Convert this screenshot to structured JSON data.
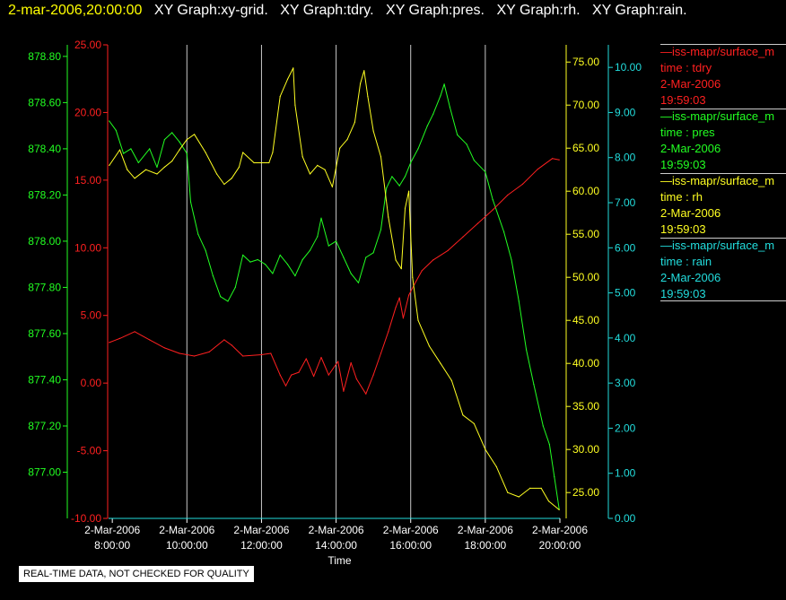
{
  "header": {
    "timestamp": "2-mar-2006,20:00:00",
    "titles": [
      "XY Graph:xy-grid.",
      "XY Graph:tdry.",
      "XY Graph:pres.",
      "XY Graph:rh.",
      "XY Graph:rain."
    ]
  },
  "colors": {
    "tdry": "#ff2020",
    "pres": "#22ff22",
    "rh": "#ffff22",
    "rain": "#22dddd",
    "timestamp": "#ffff00",
    "grid": "#c8c8c8"
  },
  "legend": [
    {
      "name": "—iss-mapr/surface_m",
      "label": "time : tdry",
      "date": "2-Mar-2006",
      "time": "19:59:03",
      "color": "#ff2020"
    },
    {
      "name": "—iss-mapr/surface_m",
      "label": "time : pres",
      "date": "2-Mar-2006",
      "time": "19:59:03",
      "color": "#22ff22"
    },
    {
      "name": "—iss-mapr/surface_m",
      "label": "time : rh",
      "date": "2-Mar-2006",
      "time": "19:59:03",
      "color": "#ffff22"
    },
    {
      "name": "—iss-mapr/surface_m",
      "label": "time : rain",
      "date": "2-Mar-2006",
      "time": "19:59:03",
      "color": "#22dddd"
    }
  ],
  "disclaimer": "REAL-TIME DATA, NOT CHECKED FOR QUALITY",
  "chart_data": {
    "type": "line",
    "xlabel": "Time",
    "x_ticks": [
      {
        "date": "2-Mar-2006",
        "time": "8:00:00",
        "h": 8
      },
      {
        "date": "2-Mar-2006",
        "time": "10:00:00",
        "h": 10
      },
      {
        "date": "2-Mar-2006",
        "time": "12:00:00",
        "h": 12
      },
      {
        "date": "2-Mar-2006",
        "time": "14:00:00",
        "h": 14
      },
      {
        "date": "2-Mar-2006",
        "time": "16:00:00",
        "h": 16
      },
      {
        "date": "2-Mar-2006",
        "time": "18:00:00",
        "h": 18
      },
      {
        "date": "2-Mar-2006",
        "time": "20:00:00",
        "h": 20
      }
    ],
    "xlim_hours": [
      7.9,
      20.0
    ],
    "grid": "vertical",
    "axes": [
      {
        "id": "pres",
        "ylim": [
          876.8,
          878.85
        ],
        "ticks": [
          "877.00",
          "877.20",
          "877.40",
          "877.60",
          "877.80",
          "878.00",
          "878.20",
          "878.40",
          "878.60",
          "878.80"
        ],
        "color": "#22ff22"
      },
      {
        "id": "tdry",
        "ylim": [
          -10,
          25
        ],
        "ticks": [
          "-10.00",
          "-5.00",
          "0.00",
          "5.00",
          "10.00",
          "15.00",
          "20.00",
          "25.00"
        ],
        "color": "#ff2020"
      },
      {
        "id": "rh",
        "ylim": [
          22,
          77
        ],
        "ticks": [
          "25.00",
          "30.00",
          "35.00",
          "40.00",
          "45.00",
          "50.00",
          "55.00",
          "60.00",
          "65.00",
          "70.00",
          "75.00"
        ],
        "color": "#ffff22"
      },
      {
        "id": "rain",
        "ylim": [
          0,
          10.5
        ],
        "ticks": [
          "0.00",
          "1.00",
          "2.00",
          "3.00",
          "4.00",
          "5.00",
          "6.00",
          "7.00",
          "8.00",
          "9.00",
          "10.00"
        ],
        "color": "#22dddd"
      }
    ],
    "series": [
      {
        "id": "tdry",
        "axis": "tdry",
        "points": [
          [
            7.92,
            3.0
          ],
          [
            8.2,
            3.3
          ],
          [
            8.6,
            3.8
          ],
          [
            9.0,
            3.2
          ],
          [
            9.4,
            2.6
          ],
          [
            9.8,
            2.2
          ],
          [
            10.2,
            2.0
          ],
          [
            10.6,
            2.3
          ],
          [
            11.0,
            3.2
          ],
          [
            11.2,
            2.8
          ],
          [
            11.5,
            2.0
          ],
          [
            12.0,
            2.1
          ],
          [
            12.25,
            2.2
          ],
          [
            12.5,
            0.6
          ],
          [
            12.65,
            -0.2
          ],
          [
            12.8,
            0.6
          ],
          [
            13.0,
            0.8
          ],
          [
            13.2,
            1.8
          ],
          [
            13.4,
            0.5
          ],
          [
            13.6,
            1.9
          ],
          [
            13.8,
            0.6
          ],
          [
            14.05,
            1.6
          ],
          [
            14.2,
            -0.6
          ],
          [
            14.4,
            1.5
          ],
          [
            14.55,
            0.3
          ],
          [
            14.8,
            -0.8
          ],
          [
            15.0,
            0.6
          ],
          [
            15.2,
            2.2
          ],
          [
            15.4,
            3.8
          ],
          [
            15.6,
            5.6
          ],
          [
            15.7,
            6.3
          ],
          [
            15.8,
            4.8
          ],
          [
            15.95,
            6.5
          ],
          [
            16.1,
            7.3
          ],
          [
            16.3,
            8.3
          ],
          [
            16.6,
            9.1
          ],
          [
            17.0,
            9.8
          ],
          [
            17.4,
            10.8
          ],
          [
            17.8,
            11.8
          ],
          [
            18.2,
            12.8
          ],
          [
            18.6,
            13.9
          ],
          [
            19.0,
            14.7
          ],
          [
            19.4,
            15.8
          ],
          [
            19.8,
            16.6
          ],
          [
            19.98,
            16.5
          ]
        ]
      },
      {
        "id": "pres",
        "axis": "pres",
        "points": [
          [
            7.92,
            878.52
          ],
          [
            8.1,
            878.48
          ],
          [
            8.3,
            878.38
          ],
          [
            8.5,
            878.4
          ],
          [
            8.7,
            878.34
          ],
          [
            9.0,
            878.4
          ],
          [
            9.2,
            878.32
          ],
          [
            9.4,
            878.44
          ],
          [
            9.6,
            878.47
          ],
          [
            9.8,
            878.43
          ],
          [
            10.0,
            878.38
          ],
          [
            10.1,
            878.17
          ],
          [
            10.3,
            878.03
          ],
          [
            10.5,
            877.96
          ],
          [
            10.7,
            877.85
          ],
          [
            10.9,
            877.76
          ],
          [
            11.1,
            877.74
          ],
          [
            11.3,
            877.8
          ],
          [
            11.5,
            877.94
          ],
          [
            11.7,
            877.91
          ],
          [
            11.9,
            877.92
          ],
          [
            12.1,
            877.9
          ],
          [
            12.3,
            877.86
          ],
          [
            12.5,
            877.94
          ],
          [
            12.7,
            877.9
          ],
          [
            12.9,
            877.85
          ],
          [
            13.1,
            877.92
          ],
          [
            13.3,
            877.96
          ],
          [
            13.5,
            878.02
          ],
          [
            13.6,
            878.1
          ],
          [
            13.8,
            877.98
          ],
          [
            14.0,
            878.0
          ],
          [
            14.2,
            877.93
          ],
          [
            14.4,
            877.86
          ],
          [
            14.6,
            877.82
          ],
          [
            14.8,
            877.93
          ],
          [
            15.0,
            877.95
          ],
          [
            15.2,
            878.05
          ],
          [
            15.35,
            878.23
          ],
          [
            15.5,
            878.28
          ],
          [
            15.7,
            878.24
          ],
          [
            15.85,
            878.28
          ],
          [
            16.0,
            878.34
          ],
          [
            16.2,
            878.4
          ],
          [
            16.45,
            878.5
          ],
          [
            16.6,
            878.55
          ],
          [
            16.8,
            878.63
          ],
          [
            16.9,
            878.68
          ],
          [
            17.05,
            878.58
          ],
          [
            17.25,
            878.46
          ],
          [
            17.5,
            878.42
          ],
          [
            17.7,
            878.35
          ],
          [
            18.0,
            878.3
          ],
          [
            18.2,
            878.18
          ],
          [
            18.5,
            878.04
          ],
          [
            18.7,
            877.92
          ],
          [
            18.9,
            877.74
          ],
          [
            19.1,
            877.53
          ],
          [
            19.3,
            877.38
          ],
          [
            19.55,
            877.2
          ],
          [
            19.72,
            877.12
          ],
          [
            19.85,
            876.98
          ],
          [
            19.98,
            876.84
          ]
        ]
      },
      {
        "id": "rh",
        "axis": "rh",
        "points": [
          [
            7.92,
            63.0
          ],
          [
            8.2,
            64.8
          ],
          [
            8.4,
            62.5
          ],
          [
            8.6,
            61.5
          ],
          [
            8.9,
            62.5
          ],
          [
            9.2,
            62.0
          ],
          [
            9.4,
            62.8
          ],
          [
            9.6,
            63.5
          ],
          [
            9.8,
            64.8
          ],
          [
            10.0,
            66.0
          ],
          [
            10.2,
            66.6
          ],
          [
            10.5,
            64.5
          ],
          [
            10.8,
            62.0
          ],
          [
            11.0,
            60.8
          ],
          [
            11.2,
            61.5
          ],
          [
            11.4,
            62.8
          ],
          [
            11.5,
            64.5
          ],
          [
            11.8,
            63.3
          ],
          [
            12.2,
            63.3
          ],
          [
            12.3,
            64.5
          ],
          [
            12.5,
            71.0
          ],
          [
            12.7,
            73.0
          ],
          [
            12.85,
            74.3
          ],
          [
            12.9,
            70.0
          ],
          [
            13.1,
            64.0
          ],
          [
            13.3,
            62.0
          ],
          [
            13.5,
            63.0
          ],
          [
            13.7,
            62.5
          ],
          [
            13.9,
            60.5
          ],
          [
            14.1,
            65.0
          ],
          [
            14.3,
            66.0
          ],
          [
            14.5,
            68.0
          ],
          [
            14.65,
            72.5
          ],
          [
            14.75,
            74.0
          ],
          [
            14.85,
            71.0
          ],
          [
            15.0,
            67.0
          ],
          [
            15.2,
            64.0
          ],
          [
            15.4,
            57.0
          ],
          [
            15.6,
            52.0
          ],
          [
            15.75,
            51.0
          ],
          [
            15.85,
            58.0
          ],
          [
            15.95,
            60.0
          ],
          [
            16.05,
            50.0
          ],
          [
            16.2,
            45.0
          ],
          [
            16.5,
            42.0
          ],
          [
            16.8,
            40.0
          ],
          [
            17.1,
            38.0
          ],
          [
            17.4,
            34.0
          ],
          [
            17.7,
            33.0
          ],
          [
            18.0,
            30.0
          ],
          [
            18.3,
            28.0
          ],
          [
            18.6,
            25.0
          ],
          [
            18.9,
            24.5
          ],
          [
            19.2,
            25.5
          ],
          [
            19.5,
            25.5
          ],
          [
            19.7,
            24.0
          ],
          [
            19.98,
            23.0
          ]
        ]
      },
      {
        "id": "rain",
        "axis": "rain",
        "points": [
          [
            7.92,
            0.0
          ],
          [
            19.98,
            0.0
          ]
        ]
      }
    ]
  }
}
